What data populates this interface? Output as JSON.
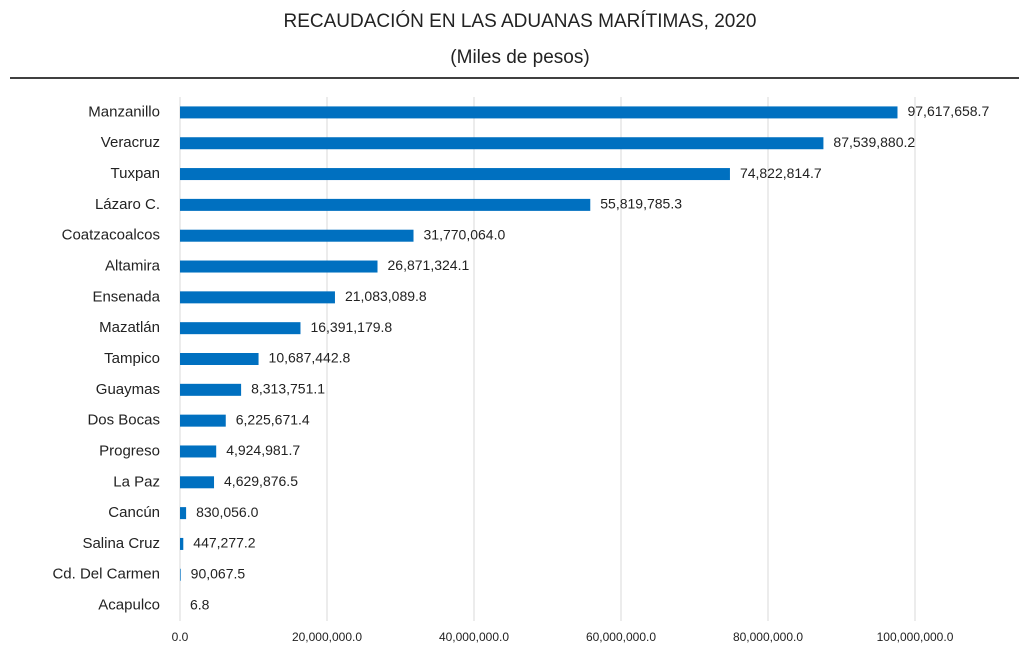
{
  "chart_data": {
    "type": "hbar",
    "title": "RECAUDACIÓN EN LAS ADUANAS MARÍTIMAS, 2020",
    "subtitle": "(Miles de pesos)",
    "categories": [
      "Manzanillo",
      "Veracruz",
      "Tuxpan",
      "Lázaro C.",
      "Coatzacoalcos",
      "Altamira",
      "Ensenada",
      "Mazatlán",
      "Tampico",
      "Guaymas",
      "Dos Bocas",
      "Progreso",
      "La Paz",
      "Cancún",
      "Salina Cruz",
      "Cd. Del Carmen",
      "Acapulco"
    ],
    "values": [
      97617658.7,
      87539880.2,
      74822814.7,
      55819785.3,
      31770064.0,
      26871324.1,
      21083089.8,
      16391179.8,
      10687442.8,
      8313751.1,
      6225671.4,
      4924981.7,
      4629876.5,
      830056.0,
      447277.2,
      90067.5,
      6.8
    ],
    "value_labels": [
      "97,617,658.7",
      "87,539,880.2",
      "74,822,814.7",
      "55,819,785.3",
      "31,770,064.0",
      "26,871,324.1",
      "21,083,089.8",
      "16,391,179.8",
      "10,687,442.8",
      "8,313,751.1",
      "6,225,671.4",
      "4,924,981.7",
      "4,629,876.5",
      "830,056.0",
      "447,277.2",
      "90,067.5",
      "6.8"
    ],
    "color": "#0070c0",
    "xlim": [
      0,
      100000000
    ],
    "xticks": [
      {
        "value": 0,
        "label": "0.0"
      },
      {
        "value": 20000000,
        "label": "20,000,000.0"
      },
      {
        "value": 40000000,
        "label": "40,000,000.0"
      },
      {
        "value": 60000000,
        "label": "60,000,000.0"
      },
      {
        "value": 80000000,
        "label": "80,000,000.0"
      },
      {
        "value": 100000000,
        "label": "100,000,000.0"
      }
    ],
    "grid": true
  }
}
